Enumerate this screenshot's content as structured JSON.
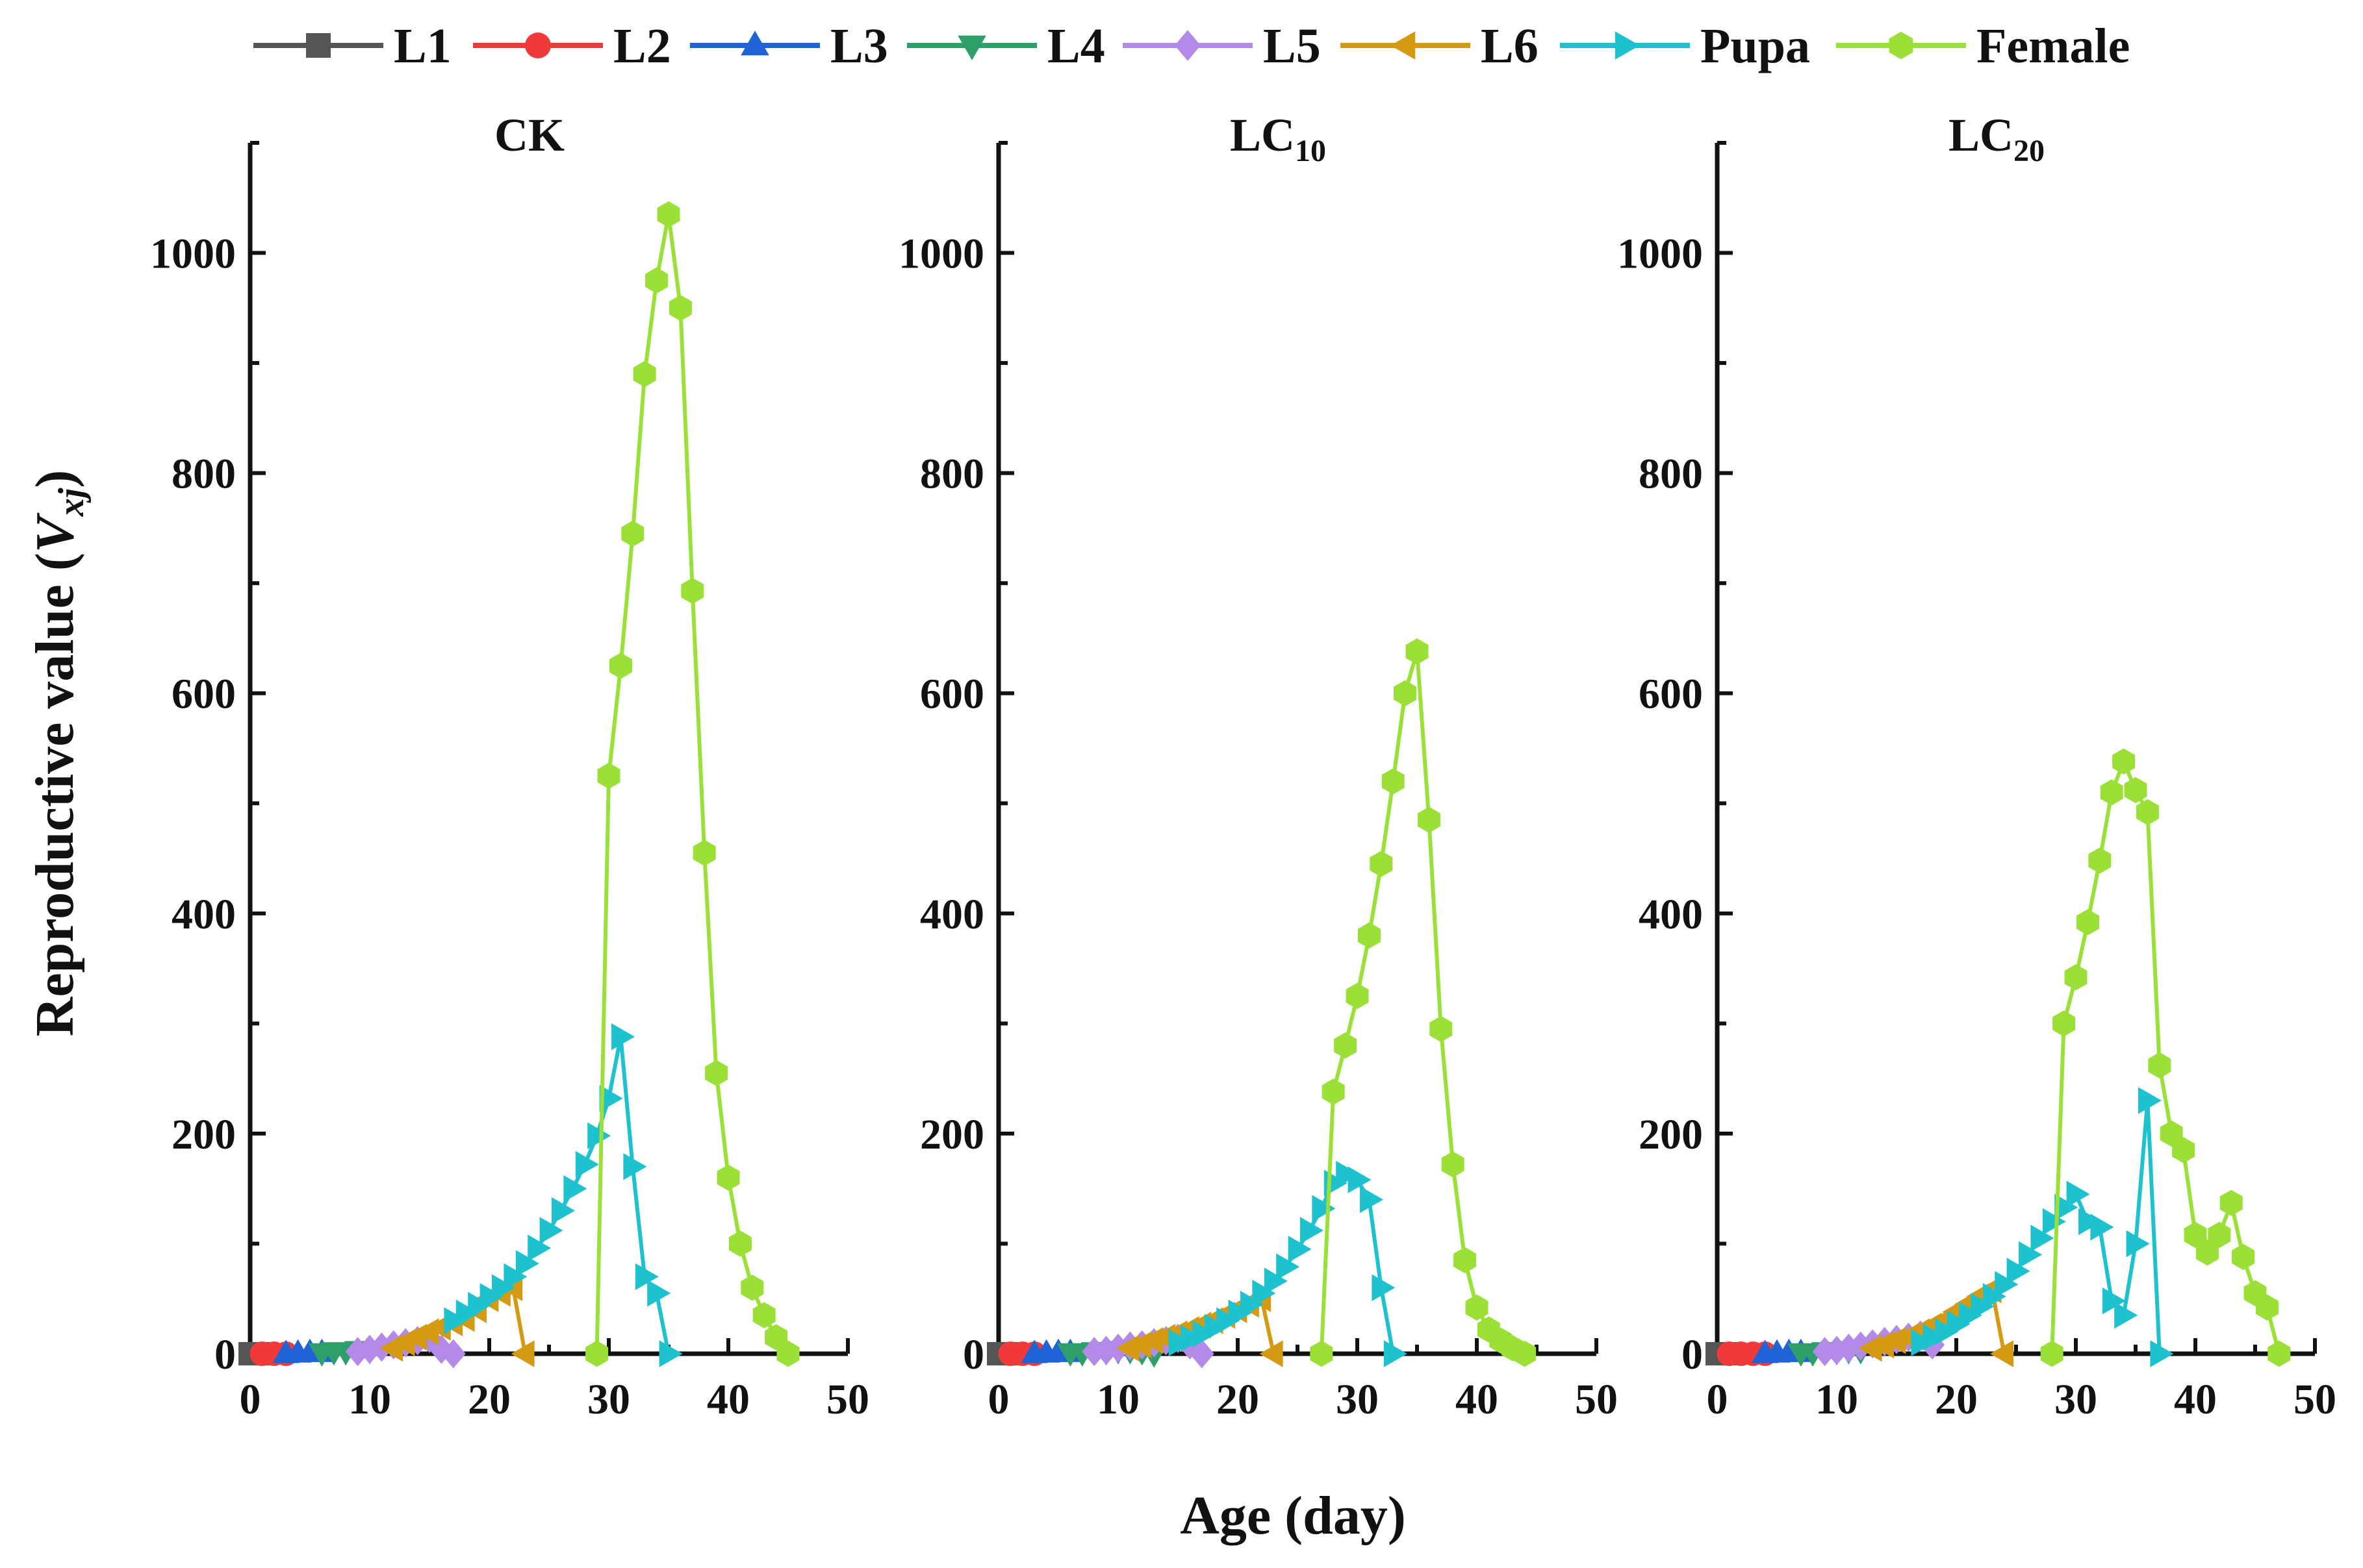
{
  "figure": {
    "ylabel_prefix": "Reproductive value (",
    "ylabel_var": "V",
    "ylabel_sub": "xj",
    "ylabel_suffix": ")",
    "xlabel": "Age (day)"
  },
  "legend": [
    {
      "name": "L1",
      "color": "#555555",
      "marker": "square"
    },
    {
      "name": "L2",
      "color": "#f03a3a",
      "marker": "circle"
    },
    {
      "name": "L3",
      "color": "#1f63d6",
      "marker": "triangle-up"
    },
    {
      "name": "L4",
      "color": "#2f9f6a",
      "marker": "triangle-down"
    },
    {
      "name": "L5",
      "color": "#b48ae8",
      "marker": "diamond"
    },
    {
      "name": "L6",
      "color": "#d49a12",
      "marker": "triangle-left"
    },
    {
      "name": "Pupa",
      "color": "#1ec2cf",
      "marker": "triangle-right"
    },
    {
      "name": "Female",
      "color": "#9be037",
      "marker": "hexagon"
    }
  ],
  "chart_data": [
    {
      "type": "line",
      "title_main": "CK",
      "title_sub": "",
      "xlabel": "Age (day)",
      "ylabel": "Reproductive value (Vxj)",
      "xlim": [
        0,
        50
      ],
      "ylim": [
        0,
        1100
      ],
      "xticks": [
        0,
        10,
        20,
        30,
        40,
        50
      ],
      "yticks": [
        0,
        200,
        400,
        600,
        800,
        1000
      ],
      "series": [
        {
          "name": "L1",
          "x": [
            0,
            1
          ],
          "y": [
            0,
            0
          ]
        },
        {
          "name": "L2",
          "x": [
            1,
            2,
            3
          ],
          "y": [
            0,
            0,
            0
          ]
        },
        {
          "name": "L3",
          "x": [
            3,
            4,
            5,
            6
          ],
          "y": [
            0,
            0.5,
            1,
            1
          ]
        },
        {
          "name": "L4",
          "x": [
            6,
            7,
            8,
            9,
            10
          ],
          "y": [
            1,
            2,
            2,
            3,
            3
          ]
        },
        {
          "name": "L5",
          "x": [
            9,
            10,
            11,
            12,
            13,
            14,
            15,
            16,
            17
          ],
          "y": [
            2,
            4,
            6,
            8,
            10,
            12,
            14,
            4,
            0
          ]
        },
        {
          "name": "L6",
          "x": [
            12,
            13,
            14,
            15,
            16,
            17,
            18,
            19,
            20,
            21,
            22,
            23
          ],
          "y": [
            5,
            10,
            15,
            20,
            24,
            28,
            32,
            40,
            50,
            55,
            60,
            0
          ]
        },
        {
          "name": "Pupa",
          "x": [
            17,
            18,
            19,
            20,
            21,
            22,
            23,
            24,
            25,
            26,
            27,
            28,
            29,
            30,
            31,
            32,
            33,
            34,
            35
          ],
          "y": [
            30,
            37,
            44,
            52,
            60,
            70,
            82,
            96,
            112,
            130,
            150,
            172,
            198,
            232,
            288,
            170,
            70,
            55,
            0
          ]
        },
        {
          "name": "Female",
          "x": [
            29,
            30,
            31,
            32,
            33,
            34,
            35,
            36,
            37,
            38,
            39,
            40,
            41,
            42,
            43,
            44,
            45
          ],
          "y": [
            0,
            525,
            625,
            745,
            890,
            975,
            1035,
            950,
            693,
            455,
            255,
            160,
            100,
            60,
            35,
            15,
            0
          ]
        }
      ]
    },
    {
      "type": "line",
      "title_main": "LC",
      "title_sub": "10",
      "xlabel": "Age (day)",
      "ylabel": "Reproductive value (Vxj)",
      "xlim": [
        0,
        50
      ],
      "ylim": [
        0,
        1100
      ],
      "xticks": [
        0,
        10,
        20,
        30,
        40,
        50
      ],
      "yticks": [
        0,
        200,
        400,
        600,
        800,
        1000
      ],
      "series": [
        {
          "name": "L1",
          "x": [
            0,
            1
          ],
          "y": [
            0,
            0
          ]
        },
        {
          "name": "L2",
          "x": [
            1,
            2,
            3
          ],
          "y": [
            0,
            0,
            0
          ]
        },
        {
          "name": "L3",
          "x": [
            3,
            4,
            5,
            6
          ],
          "y": [
            0,
            0.5,
            1,
            1
          ]
        },
        {
          "name": "L4",
          "x": [
            6,
            7,
            8,
            9,
            10,
            11,
            12,
            13
          ],
          "y": [
            1,
            1,
            2,
            2,
            3,
            3,
            2,
            0
          ]
        },
        {
          "name": "L5",
          "x": [
            8,
            9,
            10,
            11,
            12,
            13,
            14,
            15,
            16,
            17
          ],
          "y": [
            2,
            3,
            5,
            7,
            8,
            10,
            12,
            14,
            8,
            0
          ]
        },
        {
          "name": "L6",
          "x": [
            11,
            12,
            13,
            14,
            15,
            16,
            17,
            18,
            19,
            20,
            21,
            22,
            23
          ],
          "y": [
            5,
            8,
            12,
            15,
            18,
            22,
            26,
            30,
            35,
            40,
            45,
            50,
            0
          ]
        },
        {
          "name": "Pupa",
          "x": [
            15,
            16,
            17,
            18,
            19,
            20,
            21,
            22,
            23,
            24,
            25,
            26,
            27,
            28,
            29,
            30,
            31,
            32,
            33
          ],
          "y": [
            10,
            14,
            18,
            24,
            30,
            37,
            45,
            55,
            66,
            79,
            95,
            112,
            132,
            155,
            163,
            158,
            140,
            60,
            0
          ]
        },
        {
          "name": "Female",
          "x": [
            27,
            28,
            29,
            30,
            31,
            32,
            33,
            34,
            35,
            36,
            37,
            38,
            39,
            40,
            41,
            42,
            43,
            44
          ],
          "y": [
            0,
            238,
            280,
            325,
            380,
            445,
            520,
            600,
            638,
            485,
            295,
            172,
            85,
            42,
            22,
            12,
            5,
            0
          ]
        }
      ]
    },
    {
      "type": "line",
      "title_main": "LC",
      "title_sub": "20",
      "xlabel": "Age (day)",
      "ylabel": "Reproductive value (Vxj)",
      "xlim": [
        0,
        50
      ],
      "ylim": [
        0,
        1100
      ],
      "xticks": [
        0,
        10,
        20,
        30,
        40,
        50
      ],
      "yticks": [
        0,
        200,
        400,
        600,
        800,
        1000
      ],
      "series": [
        {
          "name": "L1",
          "x": [
            0,
            1
          ],
          "y": [
            0,
            0
          ]
        },
        {
          "name": "L2",
          "x": [
            1,
            2,
            3,
            4
          ],
          "y": [
            0,
            0,
            0,
            0
          ]
        },
        {
          "name": "L3",
          "x": [
            4,
            5,
            6,
            7
          ],
          "y": [
            0,
            0.5,
            1,
            1
          ]
        },
        {
          "name": "L4",
          "x": [
            7,
            8,
            9,
            10,
            11,
            12
          ],
          "y": [
            1,
            1,
            2,
            2,
            3,
            3
          ]
        },
        {
          "name": "L5",
          "x": [
            9,
            10,
            11,
            12,
            13,
            14,
            15,
            16,
            17,
            18
          ],
          "y": [
            2,
            3,
            5,
            7,
            9,
            11,
            13,
            15,
            17,
            8
          ]
        },
        {
          "name": "L6",
          "x": [
            13,
            14,
            15,
            16,
            17,
            18,
            19,
            20,
            21,
            22,
            23,
            24
          ],
          "y": [
            5,
            8,
            12,
            15,
            20,
            25,
            30,
            38,
            45,
            52,
            58,
            0
          ]
        },
        {
          "name": "Pupa",
          "x": [
            17,
            18,
            19,
            20,
            21,
            22,
            23,
            24,
            25,
            26,
            27,
            28,
            29,
            30,
            31,
            32,
            33,
            34,
            35,
            36,
            37
          ],
          "y": [
            10,
            15,
            20,
            27,
            35,
            43,
            52,
            63,
            75,
            90,
            105,
            120,
            133,
            145,
            120,
            115,
            48,
            35,
            100,
            230,
            0
          ]
        },
        {
          "name": "Female",
          "x": [
            28,
            29,
            30,
            31,
            32,
            33,
            34,
            35,
            36,
            37,
            38,
            39,
            40,
            41,
            42,
            43,
            44,
            45,
            46,
            47
          ],
          "y": [
            0,
            300,
            342,
            392,
            448,
            510,
            538,
            512,
            492,
            262,
            200,
            185,
            108,
            92,
            108,
            137,
            88,
            55,
            42,
            0
          ]
        }
      ]
    }
  ]
}
